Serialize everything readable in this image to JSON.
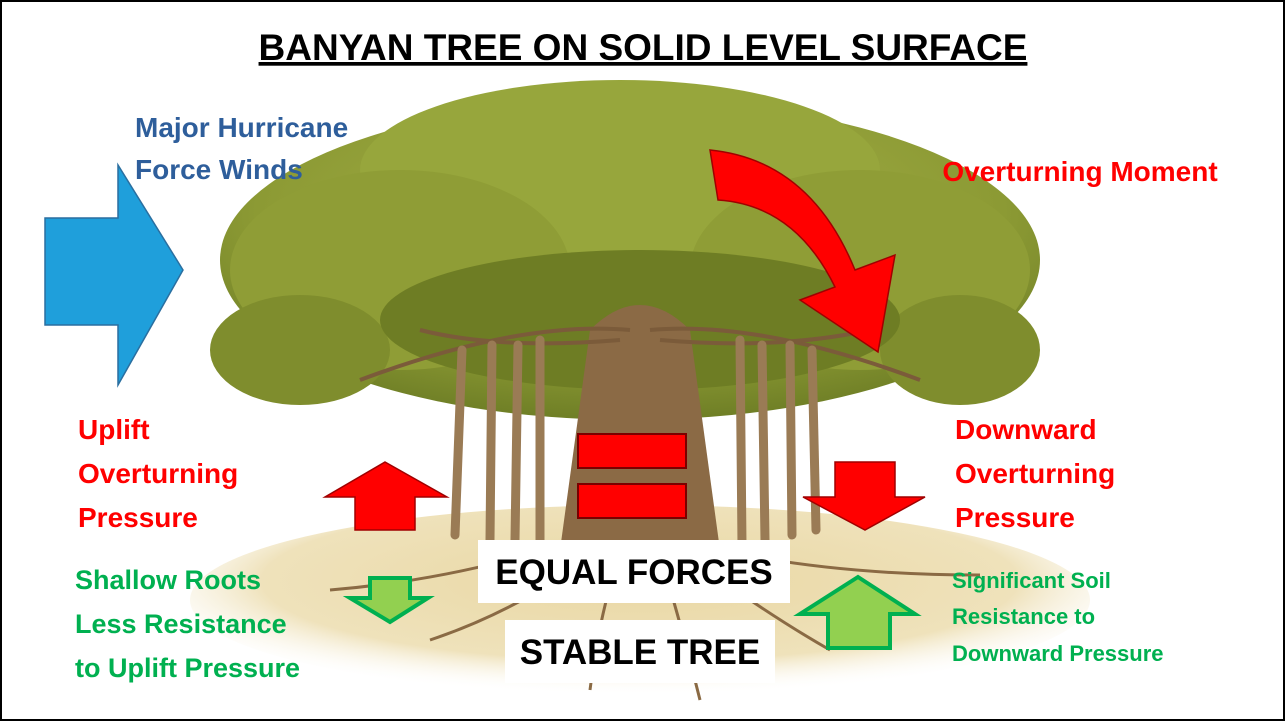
{
  "title": "BANYAN TREE ON SOLID LEVEL SURFACE",
  "labels": {
    "wind": {
      "lines": [
        "Major Hurricane",
        "Force Winds"
      ]
    },
    "moment": {
      "lines": [
        "Overturning Moment"
      ]
    },
    "uplift": {
      "lines": [
        "Uplift",
        "Overturning",
        "Pressure"
      ]
    },
    "downward": {
      "lines": [
        "Downward",
        "Overturning",
        "Pressure"
      ]
    },
    "shallow_roots": {
      "lines": [
        "Shallow Roots",
        "Less Resistance",
        "to Uplift Pressure"
      ]
    },
    "soil_resistance": {
      "lines": [
        "Significant Soil",
        "Resistance to",
        "Downward Pressure"
      ]
    }
  },
  "boxes": {
    "equal_forces": "EQUAL FORCES",
    "stable_tree": "STABLE TREE"
  }
}
